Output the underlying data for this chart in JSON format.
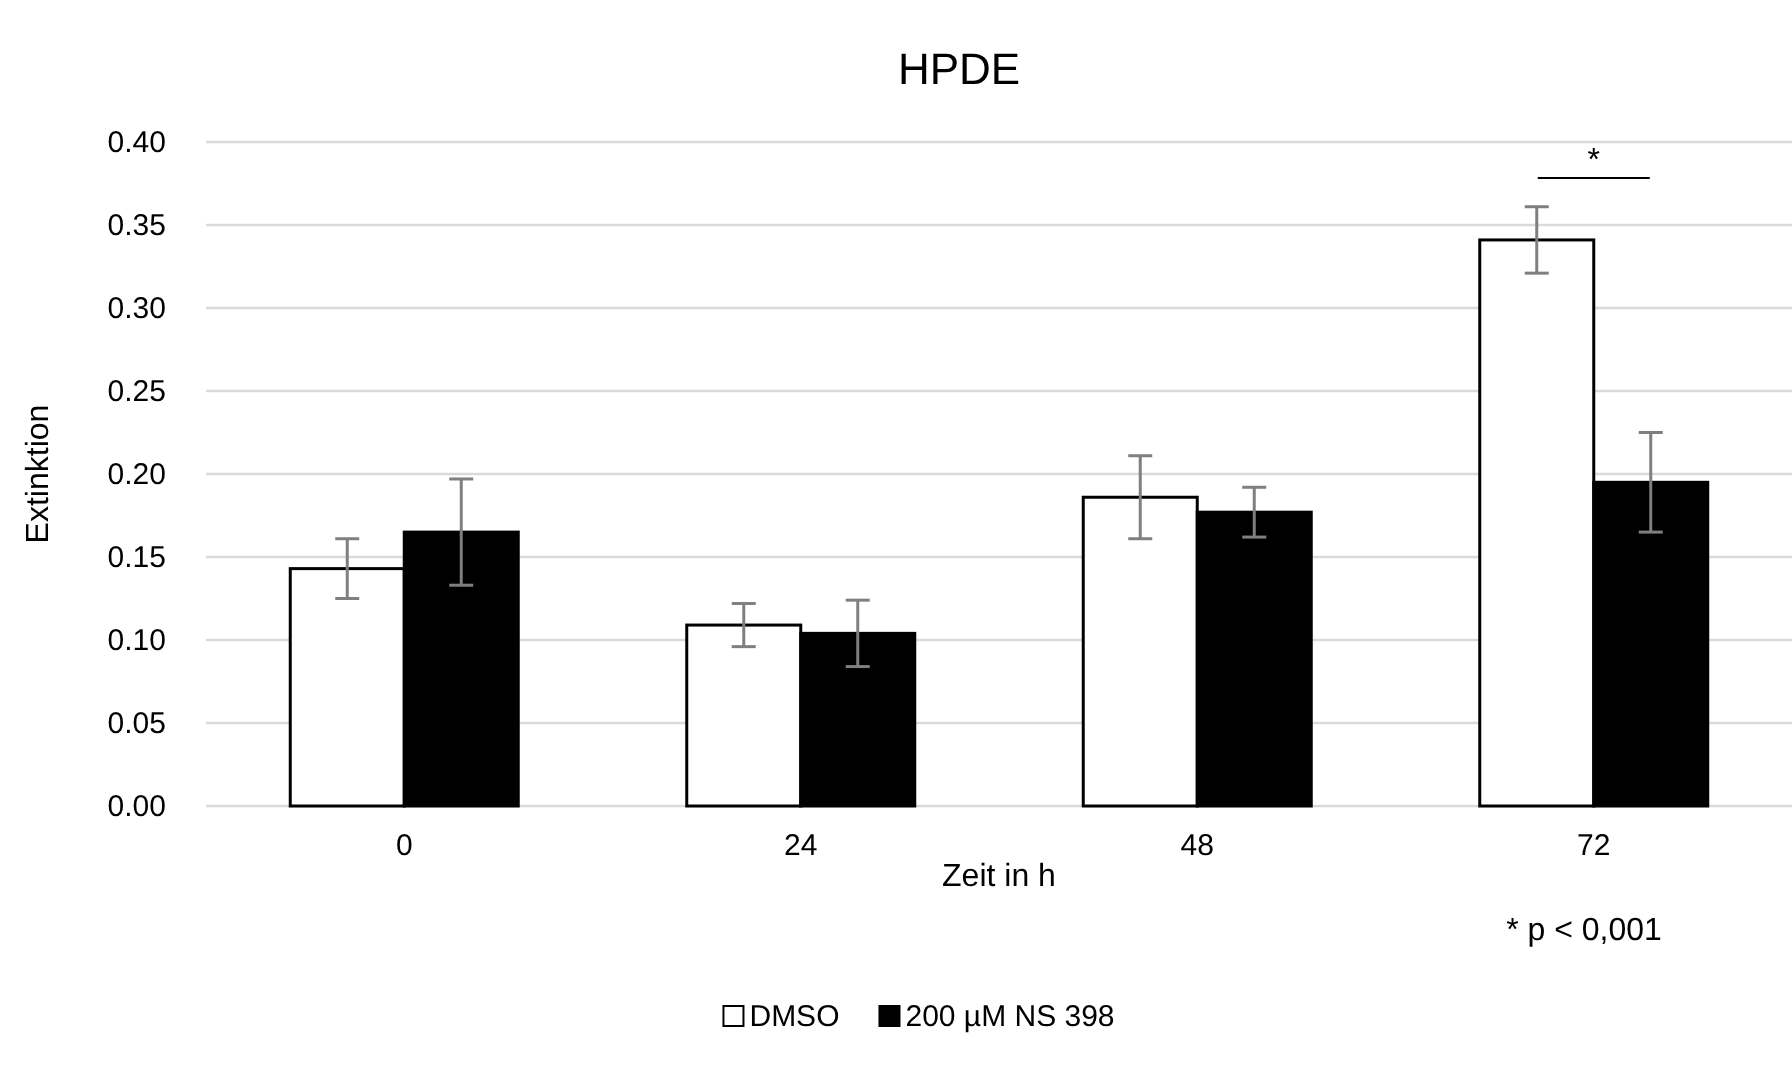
{
  "chart_data": {
    "type": "bar",
    "title": "HPDE",
    "xlabel": "Zeit in h",
    "ylabel": "Extinktion",
    "categories": [
      "0",
      "24",
      "48",
      "72"
    ],
    "series": [
      {
        "name": "DMSO",
        "color": "#ffffff",
        "values": [
          0.143,
          0.109,
          0.186,
          0.341
        ],
        "errors": [
          0.018,
          0.013,
          0.025,
          0.02
        ]
      },
      {
        "name": "200 µM NS 398",
        "color": "#000000",
        "values": [
          0.165,
          0.104,
          0.177,
          0.195
        ],
        "errors": [
          0.032,
          0.02,
          0.015,
          0.03
        ]
      }
    ],
    "ylim": [
      0,
      0.4
    ],
    "yticks": [
      {
        "value": 0,
        "label": "0.00"
      },
      {
        "value": 0.05,
        "label": "0.05"
      },
      {
        "value": 0.1,
        "label": "0.10"
      },
      {
        "value": 0.15,
        "label": "0.15"
      },
      {
        "value": 0.2,
        "label": "0.20"
      },
      {
        "value": 0.25,
        "label": "0.25"
      },
      {
        "value": 0.3,
        "label": "0.30"
      },
      {
        "value": 0.35,
        "label": "0.35"
      },
      {
        "value": 0.4,
        "label": "0.40"
      }
    ],
    "annotations": [
      "*",
      "* p < 0,001"
    ],
    "grid": "y",
    "legend": "bottom"
  }
}
